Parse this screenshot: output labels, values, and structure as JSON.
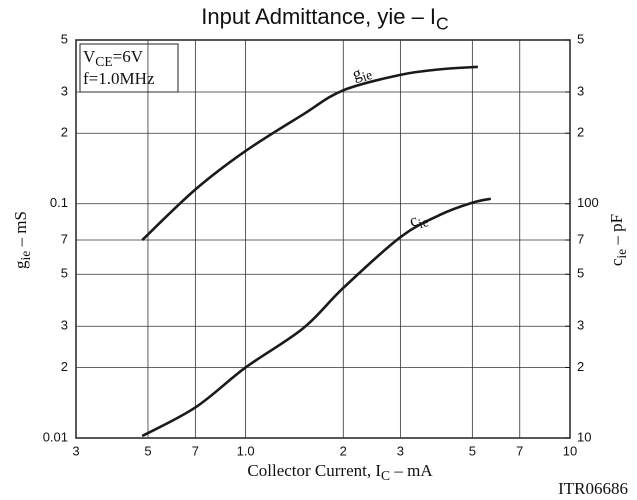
{
  "chart_data": {
    "type": "line",
    "title": [
      "Input Admittance,  yie  –  I",
      "C"
    ],
    "xlabel": [
      "Collector Current, I",
      "C",
      "  –  mA"
    ],
    "ylabel": [
      "g",
      "ie",
      "  –  mS"
    ],
    "y2label": [
      "c",
      "ie",
      "  –  pF"
    ],
    "annotations": [
      [
        "V",
        "CE",
        "=6V"
      ],
      [
        "f=1.0MHz"
      ]
    ],
    "code": "ITR06686",
    "xscale": "log",
    "yscale": "log",
    "grid": true,
    "xlim": [
      0.3,
      10
    ],
    "xticks": [
      {
        "value": 0.3,
        "label": "3"
      },
      {
        "value": 0.5,
        "label": "5"
      },
      {
        "value": 0.7,
        "label": "7"
      },
      {
        "value": 1,
        "label": "1.0"
      },
      {
        "value": 2,
        "label": "2"
      },
      {
        "value": 3,
        "label": "3"
      },
      {
        "value": 5,
        "label": "5"
      },
      {
        "value": 7,
        "label": "7"
      },
      10
    ],
    "ylim": [
      0.01,
      0.5
    ],
    "yticks": [
      {
        "value": 0.5,
        "label": "5"
      },
      {
        "value": 0.3,
        "label": "3"
      },
      {
        "value": 0.2,
        "label": "2"
      },
      0.1,
      {
        "value": 0.07,
        "label": "7"
      },
      {
        "value": 0.05,
        "label": "5"
      },
      {
        "value": 0.03,
        "label": "3"
      },
      {
        "value": 0.02,
        "label": "2"
      },
      0.01
    ],
    "y2lim": [
      10,
      500
    ],
    "y2ticks": [
      {
        "value": 500,
        "label": "5"
      },
      {
        "value": 300,
        "label": "3"
      },
      {
        "value": 200,
        "label": "2"
      },
      100,
      {
        "value": 70,
        "label": "7"
      },
      {
        "value": 50,
        "label": "5"
      },
      {
        "value": 30,
        "label": "3"
      },
      {
        "value": 20,
        "label": "2"
      },
      10
    ],
    "series": [
      {
        "name": [
          "g",
          "ie"
        ],
        "color": "#1a1a1a",
        "axis": "y",
        "x": [
          0.48,
          0.7,
          1.0,
          1.5,
          2,
          3,
          4,
          5.2
        ],
        "values": [
          0.07,
          0.115,
          0.168,
          0.24,
          0.305,
          0.355,
          0.375,
          0.384
        ]
      },
      {
        "name": [
          "c",
          "ie"
        ],
        "color": "#1a1a1a",
        "axis": "y2",
        "x": [
          0.48,
          0.7,
          1.0,
          1.5,
          2,
          3,
          4,
          5,
          5.7
        ],
        "values": [
          10.2,
          13.5,
          20,
          29.3,
          43.7,
          72,
          90,
          101,
          105
        ]
      }
    ]
  }
}
